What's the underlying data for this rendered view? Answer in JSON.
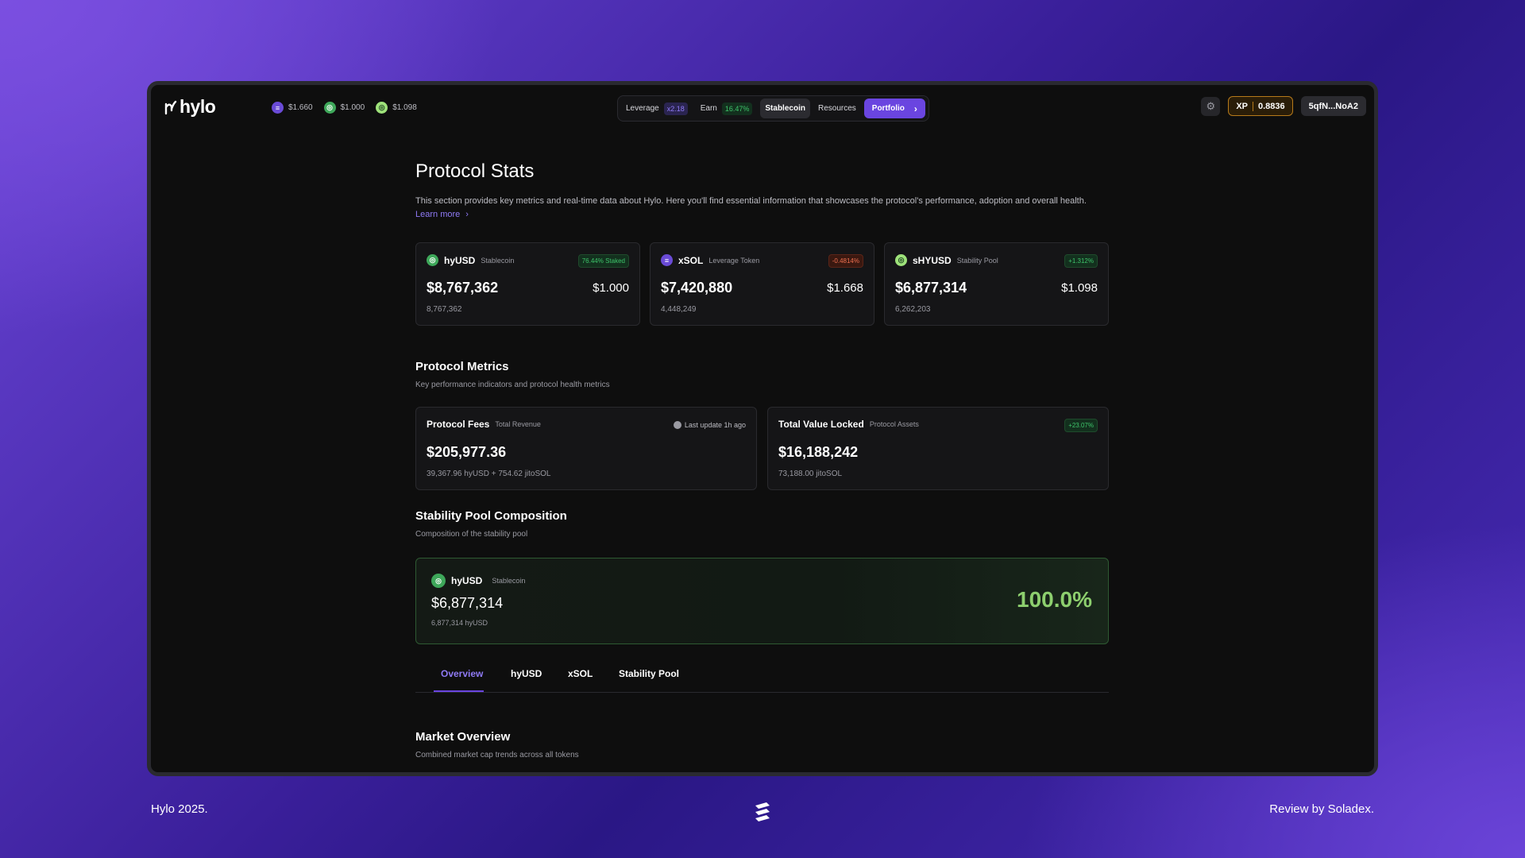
{
  "brand": {
    "name": "hylo"
  },
  "header": {
    "prices": [
      {
        "icon": "xsol-token-icon",
        "value": "$1.660"
      },
      {
        "icon": "hyusd-token-icon",
        "value": "$1.000"
      },
      {
        "icon": "shyusd-token-icon",
        "value": "$1.098"
      }
    ],
    "nav": {
      "leverage": "Leverage",
      "leverage_badge": "x2.18",
      "earn": "Earn",
      "earn_badge": "16.47%",
      "stablecoin": "Stablecoin",
      "resources": "Resources",
      "portfolio": "Portfolio"
    },
    "xp_label": "XP",
    "xp_value": "0.8836",
    "wallet": "5qfN...NoA2"
  },
  "page": {
    "title": "Protocol Stats",
    "intro": "This section provides key metrics and real-time data about Hylo. Here you'll find essential information that showcases the protocol's performance, adoption and overall health.",
    "learn_more": "Learn more"
  },
  "tokens": [
    {
      "name": "hyUSD",
      "sub": "Stablecoin",
      "badge": "76.44% Staked",
      "big": "$8,767,362",
      "price": "$1.000",
      "small": "8,767,362"
    },
    {
      "name": "xSOL",
      "sub": "Leverage Token",
      "badge": "-0.4814%",
      "big": "$7,420,880",
      "price": "$1.668",
      "small": "4,448,249"
    },
    {
      "name": "sHYUSD",
      "sub": "Stability Pool",
      "badge": "+1.312%",
      "big": "$6,877,314",
      "price": "$1.098",
      "small": "6,262,203"
    }
  ],
  "metrics": {
    "title": "Protocol Metrics",
    "subtitle": "Key performance indicators and protocol health metrics",
    "fees": {
      "name": "Protocol Fees",
      "sub": "Total Revenue",
      "update": "Last update 1h ago",
      "big": "$205,977.36",
      "small": "39,367.96 hyUSD + 754.62 jitoSOL"
    },
    "tvl": {
      "name": "Total Value Locked",
      "sub": "Protocol Assets",
      "badge": "+23.07%",
      "big": "$16,188,242",
      "small": "73,188.00 jitoSOL"
    }
  },
  "pool": {
    "title": "Stability Pool Composition",
    "subtitle": "Composition of the stability pool",
    "name": "hyUSD",
    "sub": "Stablecoin",
    "big": "$6,877,314",
    "small": "6,877,314 hyUSD",
    "pct": "100.0%"
  },
  "tabs": [
    "Overview",
    "hyUSD",
    "xSOL",
    "Stability Pool"
  ],
  "market": {
    "title": "Market Overview",
    "subtitle": "Combined market cap trends across all tokens"
  },
  "footer": {
    "left": "Hylo 2025.",
    "right": "Review by Soladex."
  }
}
